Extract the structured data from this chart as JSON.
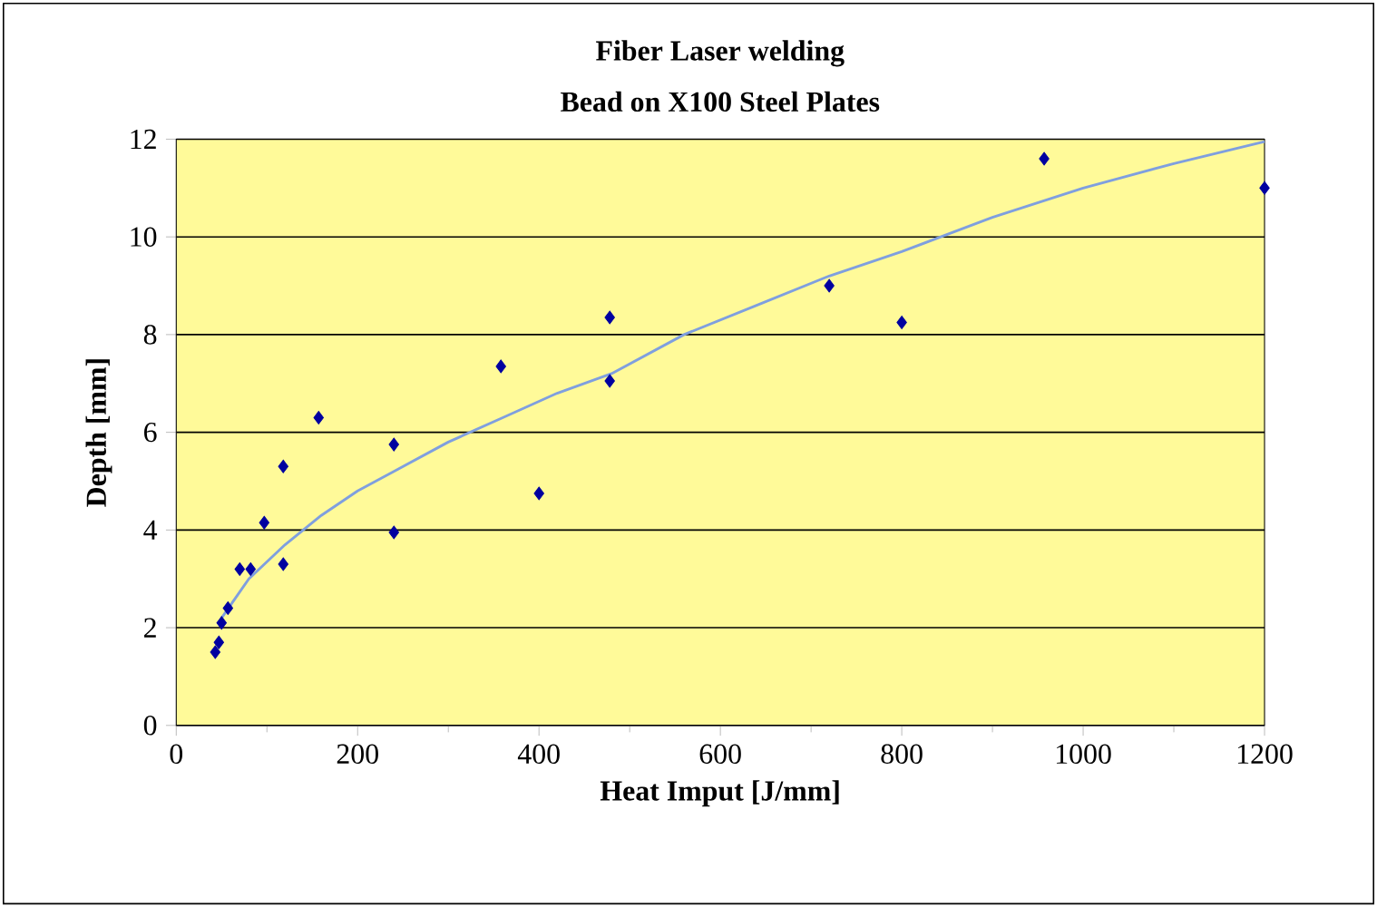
{
  "chart_data": {
    "type": "scatter",
    "title": "Fiber Laser welding",
    "subtitle": "Bead on X100 Steel Plates",
    "xlabel": "Heat Imput [J/mm]",
    "ylabel": "Depth [mm]",
    "xlim": [
      0,
      1200
    ],
    "ylim": [
      0,
      12
    ],
    "xticks": [
      0,
      200,
      400,
      600,
      800,
      1000,
      1200
    ],
    "yticks": [
      0,
      2,
      4,
      6,
      8,
      10,
      12
    ],
    "grid": "y",
    "series": [
      {
        "marker": "diamond",
        "color": "#0000a0",
        "x": [
          43,
          47,
          50,
          57,
          70,
          82,
          97,
          118,
          118,
          157,
          240,
          240,
          358,
          400,
          478,
          478,
          720,
          800,
          957,
          1200
        ],
        "values": [
          1.5,
          1.7,
          2.1,
          2.4,
          3.2,
          3.2,
          4.15,
          3.3,
          5.3,
          6.3,
          5.75,
          3.95,
          7.35,
          4.75,
          8.35,
          7.05,
          9.0,
          8.25,
          11.6,
          11.0
        ]
      },
      {
        "type": "line",
        "marker": "none",
        "color": "#7f9fdf",
        "x": [
          50,
          80,
          120,
          160,
          200,
          240,
          300,
          360,
          420,
          480,
          560,
          640,
          720,
          800,
          900,
          1000,
          1100,
          1200
        ],
        "values": [
          2.2,
          3.0,
          3.7,
          4.3,
          4.8,
          5.2,
          5.8,
          6.3,
          6.8,
          7.2,
          8.0,
          8.6,
          9.2,
          9.7,
          10.4,
          11.0,
          11.5,
          11.95
        ]
      }
    ]
  }
}
